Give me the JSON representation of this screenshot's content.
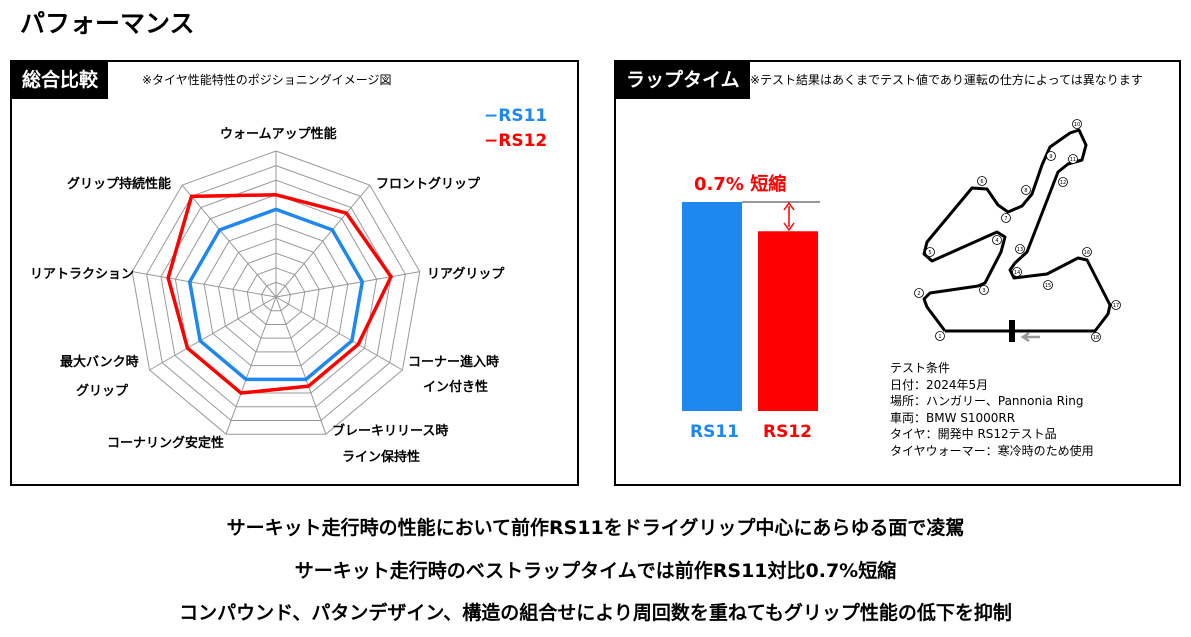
{
  "page_title": "パフォーマンス",
  "overall": {
    "tab": "総合比較",
    "note": "※タイヤ性能特性のポジショニングイメージ図",
    "legend": [
      {
        "name": "RS11",
        "color": "#1e88f0"
      },
      {
        "name": "RS12",
        "color": "#ff0000"
      }
    ],
    "chart_data": {
      "type": "radar",
      "axes": [
        "ウォームアップ性能",
        "フロントグリップ",
        "リアグリップ",
        "コーナー進入時イン付き性",
        "ブレーキリリース時ライン保持性",
        "コーナリング安定性",
        "最大バンク時グリップ",
        "リアトラクション",
        "グリップ持続性能"
      ],
      "axis_labels": [
        [
          "ウォームアップ性能"
        ],
        [
          "フロントグリップ"
        ],
        [
          "リアグリップ"
        ],
        [
          "コーナー進入時",
          "イン付き性"
        ],
        [
          "ブレーキリリース時",
          "ライン保持性"
        ],
        [
          "コーナリング安定性"
        ],
        [
          "最大バンク時",
          "グリップ"
        ],
        [
          "リアトラクション"
        ],
        [
          "グリップ持続性能"
        ]
      ],
      "range": [
        0,
        10
      ],
      "rings": 10,
      "series": [
        {
          "name": "RS11",
          "color": "#1e88f0",
          "values": [
            6,
            6,
            6,
            6,
            6,
            6,
            6,
            6,
            6
          ]
        },
        {
          "name": "RS12",
          "color": "#ff0000",
          "values": [
            7,
            7.5,
            8,
            6.5,
            6.5,
            7,
            7,
            7.5,
            9
          ]
        }
      ]
    }
  },
  "laptime": {
    "tab": "ラップタイム",
    "note": "※テスト結果はあくまでテスト値であり運転の仕方によっては異なります",
    "reduction_label": "0.7% 短縮",
    "bars": [
      {
        "name": "RS11",
        "color": "#1e88f0",
        "relative": 1.0
      },
      {
        "name": "RS12",
        "color": "#ff0000",
        "relative": 0.86
      }
    ],
    "conditions": [
      "テスト条件",
      "日付：2024年5月",
      "場所：ハンガリー、Pannonia Ring",
      "車両：BMW S1000RR",
      "タイヤ：開発中 RS12テスト品",
      "タイヤウォーマー：寒冷時のため使用"
    ],
    "corners": [
      "1",
      "2",
      "3",
      "4",
      "5",
      "6",
      "7",
      "8",
      "9",
      "10",
      "11",
      "12",
      "13",
      "14",
      "15",
      "16",
      "17",
      "18"
    ]
  },
  "summary": [
    "サーキット走行時の性能において前作RS11をドライグリップ中心にあらゆる面で凌駕",
    "サーキット走行時のベストラップタイムでは前作RS11対比0.7%短縮",
    "コンパウンド、パタンデザイン、構造の組合せにより周回数を重ねてもグリップ性能の低下を抑制"
  ]
}
